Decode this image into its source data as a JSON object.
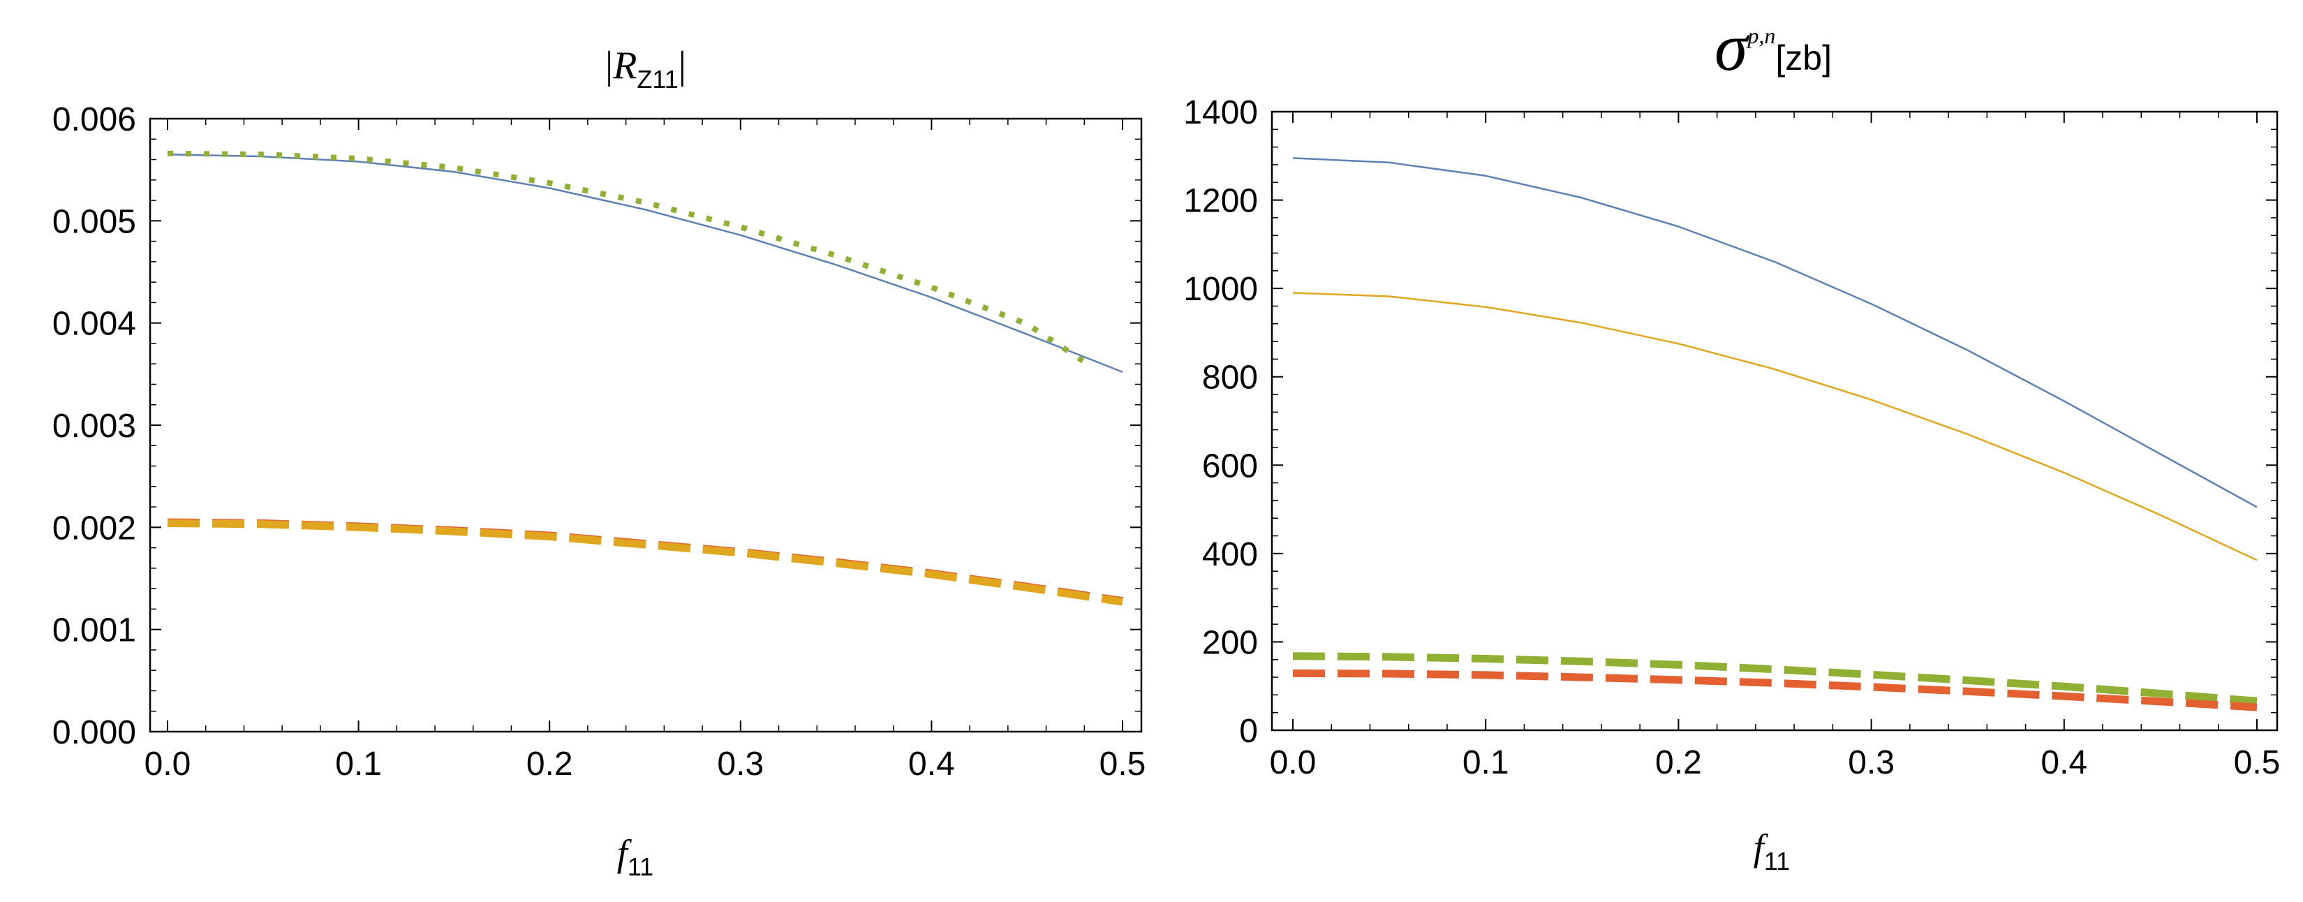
{
  "chart_data": [
    {
      "type": "line",
      "title": {
        "prefix": "|",
        "main": "R",
        "sub": "Z11",
        "suffix": "|"
      },
      "xlabel": {
        "main": "f",
        "sub": "11"
      },
      "xlim": [
        0,
        0.5
      ],
      "ylim": [
        0,
        0.006
      ],
      "xticks": [
        "0.0",
        "0.1",
        "0.2",
        "0.3",
        "0.4",
        "0.5"
      ],
      "yticks": [
        "0.000",
        "0.001",
        "0.002",
        "0.003",
        "0.004",
        "0.005",
        "0.006"
      ],
      "grid": false,
      "series": [
        {
          "color": "#5e81b5",
          "style": "solid",
          "x": [
            0,
            0.05,
            0.1,
            0.15,
            0.2,
            0.25,
            0.3,
            0.35,
            0.4,
            0.45,
            0.5
          ],
          "y": [
            0.00565,
            0.00563,
            0.00558,
            0.00548,
            0.00532,
            0.00511,
            0.00486,
            0.00457,
            0.00425,
            0.00389,
            0.00352
          ]
        },
        {
          "color": "#8fb032",
          "style": "dotted",
          "x": [
            0,
            0.05,
            0.1,
            0.15,
            0.2,
            0.25,
            0.3,
            0.35,
            0.4,
            0.45,
            0.48
          ],
          "y": [
            0.00566,
            0.00565,
            0.00561,
            0.00552,
            0.00537,
            0.00518,
            0.00494,
            0.00466,
            0.00435,
            0.00399,
            0.00362
          ]
        },
        {
          "color": "#e56030",
          "style": "dashed",
          "x": [
            0,
            0.05,
            0.1,
            0.15,
            0.2,
            0.25,
            0.3,
            0.35,
            0.4,
            0.45,
            0.5
          ],
          "y": [
            0.00205,
            0.00204,
            0.00201,
            0.00197,
            0.00192,
            0.00184,
            0.00176,
            0.00166,
            0.00155,
            0.00142,
            0.00128
          ]
        },
        {
          "color": "#e0a71e",
          "style": "dashed",
          "x": [
            0,
            0.05,
            0.1,
            0.15,
            0.2,
            0.25,
            0.3,
            0.35,
            0.4,
            0.45,
            0.5
          ],
          "y": [
            0.00204,
            0.00203,
            0.002,
            0.00196,
            0.00191,
            0.00183,
            0.00175,
            0.00165,
            0.00154,
            0.00141,
            0.00127
          ]
        }
      ]
    },
    {
      "type": "line",
      "title": {
        "main": "σ",
        "sup": "p,n",
        "unit": "[zb]"
      },
      "xlabel": {
        "main": "f",
        "sub": "11"
      },
      "xlim": [
        0,
        0.5
      ],
      "ylim": [
        0,
        1400
      ],
      "xticks": [
        "0.0",
        "0.1",
        "0.2",
        "0.3",
        "0.4",
        "0.5"
      ],
      "yticks": [
        "0",
        "200",
        "400",
        "600",
        "800",
        "1000",
        "1200",
        "1400"
      ],
      "grid": false,
      "series": [
        {
          "color": "#5e81b5",
          "style": "solid",
          "x": [
            0,
            0.05,
            0.1,
            0.15,
            0.2,
            0.25,
            0.3,
            0.35,
            0.4,
            0.45,
            0.5
          ],
          "y": [
            1295,
            1285,
            1255,
            1205,
            1140,
            1060,
            965,
            860,
            745,
            625,
            505
          ]
        },
        {
          "color": "#e0a71e",
          "style": "solid",
          "x": [
            0,
            0.05,
            0.1,
            0.15,
            0.2,
            0.25,
            0.3,
            0.35,
            0.4,
            0.45,
            0.5
          ],
          "y": [
            990,
            982,
            958,
            922,
            875,
            817,
            748,
            670,
            583,
            487,
            385
          ]
        },
        {
          "color": "#8fb032",
          "style": "dashed",
          "x": [
            0,
            0.05,
            0.1,
            0.15,
            0.2,
            0.25,
            0.3,
            0.35,
            0.4,
            0.45,
            0.5
          ],
          "y": [
            168,
            166,
            162,
            156,
            148,
            138,
            126,
            113,
            99,
            83,
            66
          ]
        },
        {
          "color": "#e56030",
          "style": "dashed",
          "x": [
            0,
            0.05,
            0.1,
            0.15,
            0.2,
            0.25,
            0.3,
            0.35,
            0.4,
            0.45,
            0.5
          ],
          "y": [
            129,
            128,
            125,
            120,
            114,
            107,
            98,
            88,
            77,
            65,
            52
          ]
        }
      ]
    }
  ]
}
